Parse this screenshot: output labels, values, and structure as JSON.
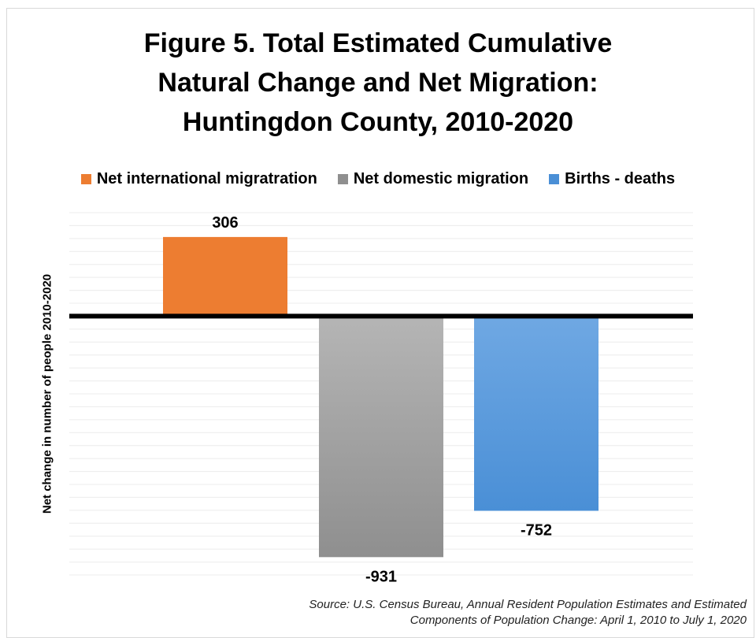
{
  "title_lines": [
    "Figure 5. Total Estimated Cumulative",
    "Natural Change and Net Migration:",
    "Huntingdon County, 2010-2020"
  ],
  "source_lines": [
    "Source: U.S. Census Bureau, Annual Resident Population Estimates and Estimated",
    "Components of Population Change: April 1, 2010 to July 1, 2020"
  ],
  "chart_data": {
    "type": "bar",
    "title": "Figure 5. Total Estimated Cumulative Natural Change and Net Migration: Huntingdon County, 2010-2020",
    "xlabel": "",
    "ylabel": "Net change in number of people 2010-2020",
    "legend_position": "top",
    "grid": true,
    "ylim": [
      -1000,
      400
    ],
    "series": [
      {
        "name": "Net international migratration",
        "value": 306,
        "label": "306",
        "color": "#ED7D31",
        "color_light": "#F08A3E"
      },
      {
        "name": "Net domestic migration",
        "value": -931,
        "label": "-931",
        "color": "#8F8F8F",
        "color_light": "#B5B5B5"
      },
      {
        "name": "Births  - deaths",
        "value": -752,
        "label": "-752",
        "color": "#4A8FD6",
        "color_light": "#6FA8E3"
      }
    ]
  }
}
